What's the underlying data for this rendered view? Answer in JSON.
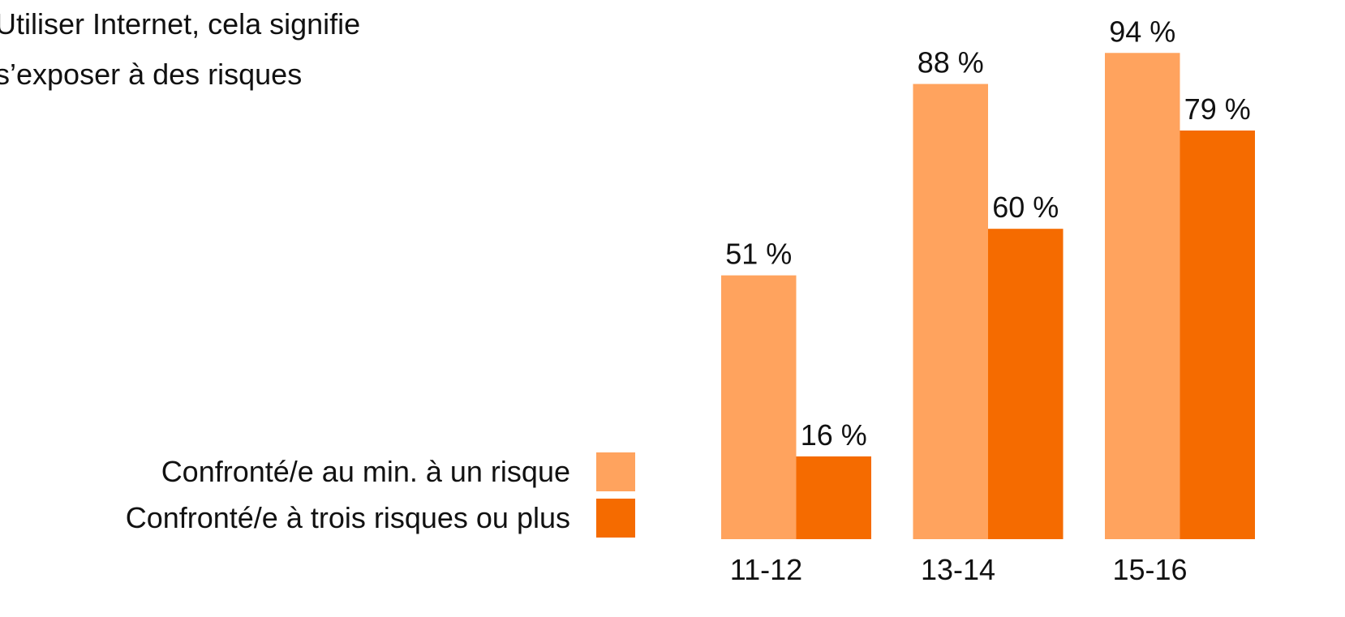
{
  "chart_data": {
    "type": "bar",
    "title": [
      "Utiliser Internet, cela signifie",
      "s’exposer à des risques"
    ],
    "categories": [
      "11-12",
      "13-14",
      "15-16"
    ],
    "series": [
      {
        "name": "Confronté/e au min. à un risque",
        "color": "#ffa35e",
        "values": [
          51,
          88,
          94
        ],
        "value_labels": [
          "51 %",
          "88 %",
          "94 %"
        ]
      },
      {
        "name": "Confronté/e à trois risques ou plus",
        "color": "#f56b00",
        "values": [
          16,
          60,
          79
        ],
        "value_labels": [
          "16 %",
          "60 %",
          "79 %"
        ]
      }
    ]
  }
}
